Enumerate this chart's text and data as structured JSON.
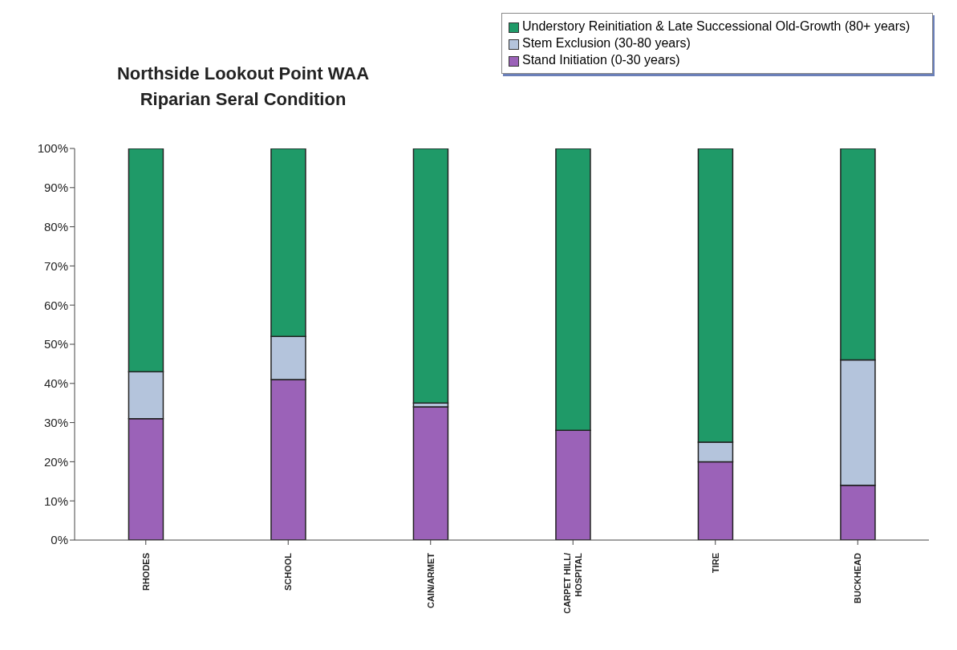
{
  "chart_data": {
    "type": "bar",
    "title": "Northside Lookout Point WAA",
    "subtitle": "Riparian Seral Condition",
    "categories": [
      "RHODES",
      "SCHOOL",
      "CAIN/ARMET",
      "CARPET HILL/ HOSPITAL",
      "TIRE",
      "BUCKHEAD"
    ],
    "stacked": true,
    "series": [
      {
        "name": "Stand Initiation (0-30 years)",
        "color": "#9b62b8",
        "values": [
          31,
          41,
          34,
          28,
          20,
          14
        ]
      },
      {
        "name": "Stem Exclusion (30-80 years)",
        "color": "#b4c4dc",
        "values": [
          12,
          11,
          1,
          0,
          5,
          32
        ]
      },
      {
        "name": "Understory Reinitiation & Late Successional Old-Growth (80+ years)",
        "color": "#1f9a68",
        "values": [
          57,
          48,
          65,
          72,
          75,
          54
        ]
      }
    ],
    "ylim": [
      0,
      100
    ],
    "yticks": [
      {
        "value": 0,
        "label": "0%"
      },
      {
        "value": 10,
        "label": "10%"
      },
      {
        "value": 20,
        "label": "20%"
      },
      {
        "value": 30,
        "label": "30%"
      },
      {
        "value": 40,
        "label": "40%"
      },
      {
        "value": 50,
        "label": "50%"
      },
      {
        "value": 60,
        "label": "60%"
      },
      {
        "value": 70,
        "label": "70%"
      },
      {
        "value": 80,
        "label": "80%"
      },
      {
        "value": 90,
        "label": "90%"
      },
      {
        "value": 100,
        "label": "100%"
      }
    ],
    "grid": false,
    "legend": "top right"
  }
}
